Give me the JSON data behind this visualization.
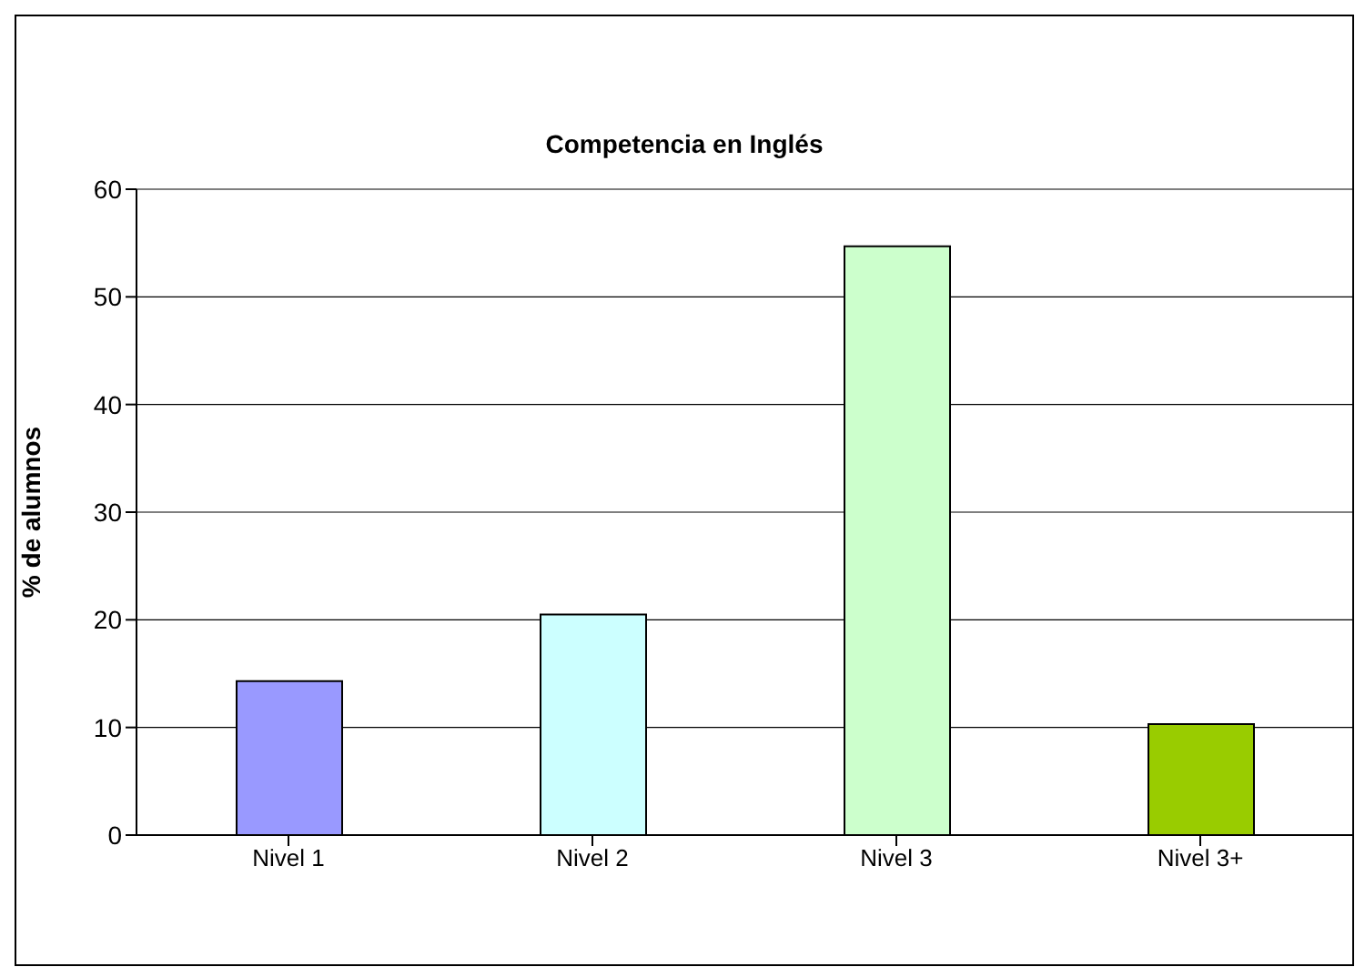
{
  "chart_data": {
    "type": "bar",
    "title": "Competencia en Inglés",
    "ylabel": "% de alumnos",
    "categories": [
      "Nivel 1",
      "Nivel 2",
      "Nivel 3",
      "Nivel 3+"
    ],
    "values": [
      14.3,
      20.5,
      54.7,
      10.3
    ],
    "colors": [
      "#9999ff",
      "#ccffff",
      "#ccffcc",
      "#99cc00"
    ],
    "ylim": [
      0,
      60
    ],
    "yticks": [
      0,
      10,
      20,
      30,
      40,
      50,
      60
    ],
    "grid": "y",
    "legend": false
  }
}
